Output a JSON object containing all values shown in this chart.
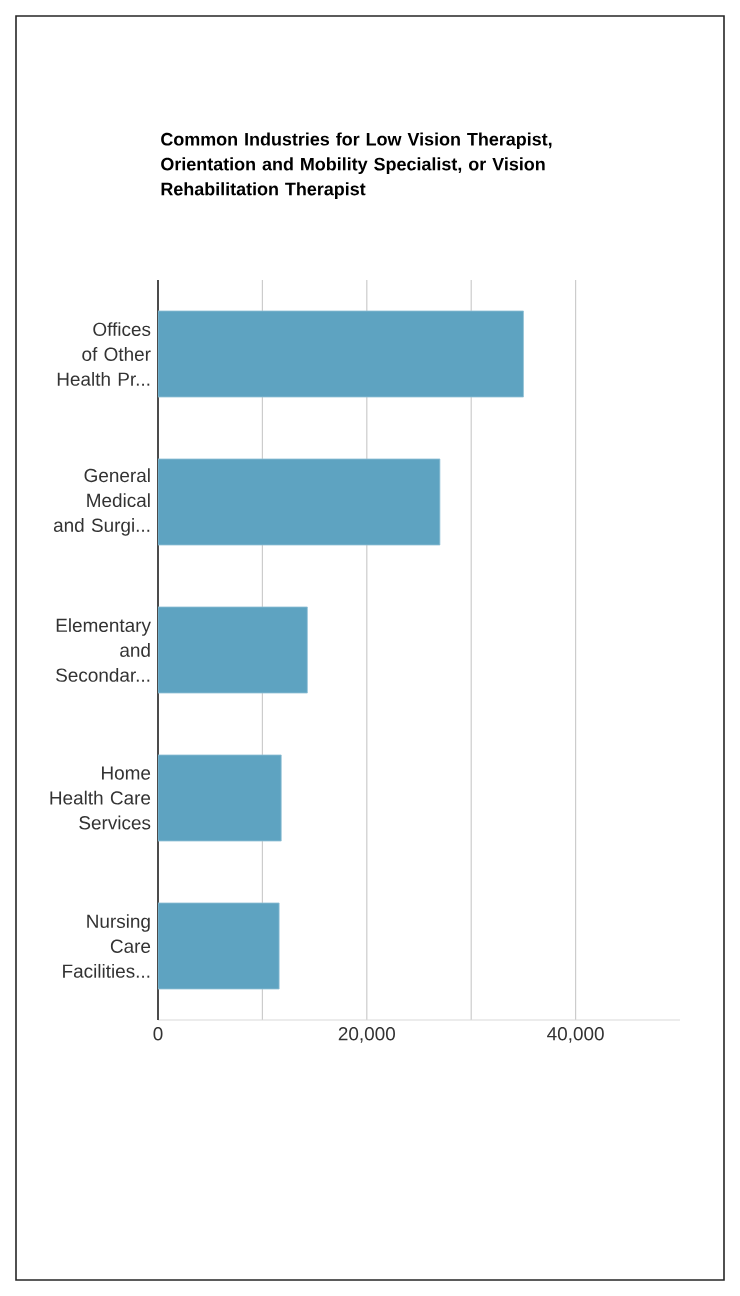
{
  "chart_data": {
    "type": "bar",
    "orientation": "horizontal",
    "title": "Common Industries for Low Vision Therapist, Orientation and Mobility Specialist, or Vision Rehabilitation Therapist",
    "categories": [
      "Offices of Other Health Pr...",
      "General Medical and Surgi...",
      "Elementary and Secondar...",
      "Home Health Care Services",
      "Nursing Care Facilities..."
    ],
    "values": [
      35000,
      27000,
      14300,
      11800,
      11600
    ],
    "color": "#5ea3c1",
    "xlim": [
      0,
      50000
    ],
    "xticks": [
      0,
      {
        "value": 10000,
        "label": null
      },
      {
        "value": 20000,
        "label": "20,000"
      },
      {
        "value": 30000,
        "label": null
      },
      {
        "value": 40000,
        "label": "40,000"
      }
    ],
    "grid": "x"
  }
}
